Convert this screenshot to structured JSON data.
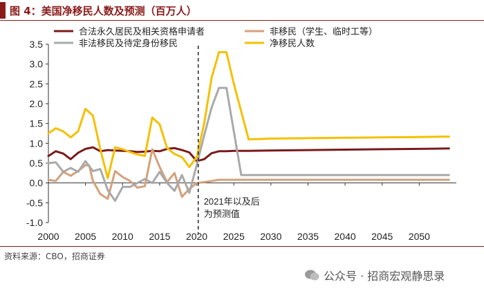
{
  "header": {
    "title": "图 4：美国净移民人数及预测（百万人）"
  },
  "footer": {
    "source": "资料来源：CBO，招商证券",
    "watermark": "公众号 · 招商宏观静思录"
  },
  "annotation": {
    "line1": "2021年以及后",
    "line2": "为预测值"
  },
  "colors": {
    "accent": "#8b1b1b",
    "legal": "#7a1a1a",
    "nonimm": "#d4a07a",
    "illegal": "#a9a9a9",
    "net": "#f5c000"
  },
  "chart_data": {
    "type": "line",
    "title": "美国净移民人数及预测（百万人）",
    "xlabel": "",
    "ylabel": "",
    "xlim": [
      2000,
      2055
    ],
    "ylim": [
      -1.0,
      3.5
    ],
    "xticks": [
      "2000",
      "2005",
      "2010",
      "2015",
      "2020",
      "2025",
      "2030",
      "2035",
      "2040",
      "2045",
      "2050"
    ],
    "yticks": [
      "-1.0",
      "-0.5",
      "0.0",
      "0.5",
      "1.0",
      "1.5",
      "2.0",
      "2.5",
      "3.0",
      "3.5"
    ],
    "forecast_start": 2020.2,
    "series": [
      {
        "name": "合法永久居民及相关资格申请者",
        "color": "#7a1a1a",
        "x": [
          2000,
          2001,
          2002,
          2003,
          2004,
          2005,
          2006,
          2007,
          2008,
          2009,
          2010,
          2011,
          2012,
          2013,
          2014,
          2015,
          2016,
          2017,
          2018,
          2019,
          2020,
          2021,
          2022,
          2023,
          2024,
          2025,
          2027,
          2030,
          2035,
          2040,
          2045,
          2050,
          2054
        ],
        "y": [
          0.68,
          0.8,
          0.74,
          0.6,
          0.76,
          0.86,
          0.9,
          0.8,
          0.83,
          0.82,
          0.81,
          0.8,
          0.78,
          0.79,
          0.81,
          0.8,
          0.86,
          0.88,
          0.83,
          0.77,
          0.55,
          0.6,
          0.75,
          0.8,
          0.8,
          0.81,
          0.81,
          0.82,
          0.83,
          0.84,
          0.85,
          0.86,
          0.87
        ]
      },
      {
        "name": "非移民（学生、临时工等）",
        "color": "#d4a07a",
        "x": [
          2000,
          2001,
          2002,
          2003,
          2004,
          2005,
          2005.5,
          2006,
          2007,
          2008,
          2009,
          2010,
          2011,
          2012,
          2013,
          2014,
          2015,
          2016,
          2017,
          2018,
          2019,
          2020,
          2021,
          2022,
          2023,
          2025,
          2030,
          2035,
          2040,
          2045,
          2050,
          2054
        ],
        "y": [
          0.08,
          0.05,
          0.28,
          0.18,
          0.3,
          0.45,
          0.44,
          0.05,
          -0.28,
          -0.4,
          0.3,
          0.15,
          0.05,
          -0.12,
          -0.08,
          0.85,
          0.4,
          0.02,
          0.25,
          -0.35,
          -0.15,
          0.0,
          0.02,
          0.05,
          0.08,
          0.08,
          0.08,
          0.08,
          0.08,
          0.08,
          0.08,
          0.08
        ]
      },
      {
        "name": "非法移民及待定身份移民",
        "color": "#a9a9a9",
        "x": [
          2000,
          2001,
          2002,
          2003,
          2004,
          2005,
          2006,
          2007,
          2008,
          2009,
          2010,
          2011,
          2012,
          2013,
          2014,
          2015,
          2016,
          2017,
          2018,
          2019,
          2020,
          2021,
          2022,
          2023,
          2024,
          2025,
          2026,
          2027,
          2030,
          2035,
          2040,
          2045,
          2050,
          2054
        ],
        "y": [
          0.5,
          0.52,
          0.28,
          0.38,
          0.28,
          0.55,
          0.3,
          0.35,
          -0.18,
          -0.45,
          -0.1,
          -0.1,
          0.0,
          0.1,
          0.0,
          0.28,
          0.0,
          -0.2,
          0.2,
          -0.25,
          0.45,
          1.2,
          1.9,
          2.4,
          2.4,
          1.3,
          0.2,
          0.2,
          0.2,
          0.2,
          0.2,
          0.2,
          0.2,
          0.2
        ]
      },
      {
        "name": "净移民人数",
        "color": "#f5c000",
        "x": [
          2000,
          2001,
          2002,
          2003,
          2004,
          2005,
          2006,
          2007,
          2008,
          2009,
          2010,
          2011,
          2012,
          2013,
          2014,
          2015,
          2016,
          2017,
          2018,
          2019,
          2020,
          2021,
          2022,
          2023,
          2024,
          2025,
          2027,
          2030,
          2035,
          2040,
          2045,
          2050,
          2054
        ],
        "y": [
          1.25,
          1.38,
          1.3,
          1.15,
          1.3,
          1.87,
          1.7,
          0.85,
          0.12,
          0.9,
          0.85,
          0.78,
          0.72,
          0.68,
          1.65,
          1.48,
          0.88,
          0.73,
          0.65,
          0.4,
          0.65,
          1.5,
          2.65,
          3.3,
          3.3,
          2.5,
          1.1,
          1.12,
          1.13,
          1.14,
          1.15,
          1.16,
          1.17
        ]
      }
    ]
  }
}
